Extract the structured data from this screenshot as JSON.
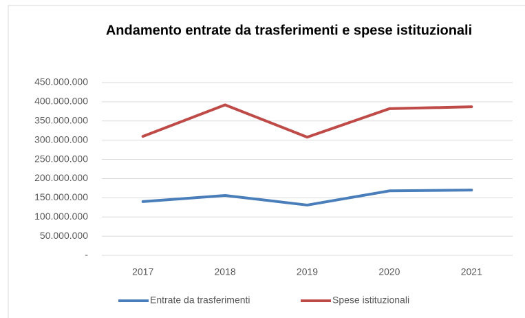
{
  "chart_data": {
    "type": "line",
    "title": "Andamento entrate da trasferimenti e spese istituzionali",
    "categories": [
      "2017",
      "2018",
      "2019",
      "2020",
      "2021"
    ],
    "series": [
      {
        "name": "Entrate da trasferimenti",
        "color": "#4a7ebb",
        "values": [
          140000000,
          156000000,
          131000000,
          168000000,
          170000000
        ]
      },
      {
        "name": "Spese istituzionali",
        "color": "#be4b48",
        "values": [
          310000000,
          392000000,
          308000000,
          382000000,
          387000000
        ]
      }
    ],
    "ylim": [
      0,
      450000000
    ],
    "yticks": [
      {
        "value": 0,
        "label": "-"
      },
      {
        "value": 50000000,
        "label": "50.000.000"
      },
      {
        "value": 100000000,
        "label": "100.000.000"
      },
      {
        "value": 150000000,
        "label": "150.000.000"
      },
      {
        "value": 200000000,
        "label": "200.000.000"
      },
      {
        "value": 250000000,
        "label": "250.000.000"
      },
      {
        "value": 300000000,
        "label": "300.000.000"
      },
      {
        "value": 350000000,
        "label": "350.000.000"
      },
      {
        "value": 400000000,
        "label": "400.000.000"
      },
      {
        "value": 450000000,
        "label": "450.000.000"
      }
    ],
    "grid": true,
    "legend": "bottom"
  }
}
